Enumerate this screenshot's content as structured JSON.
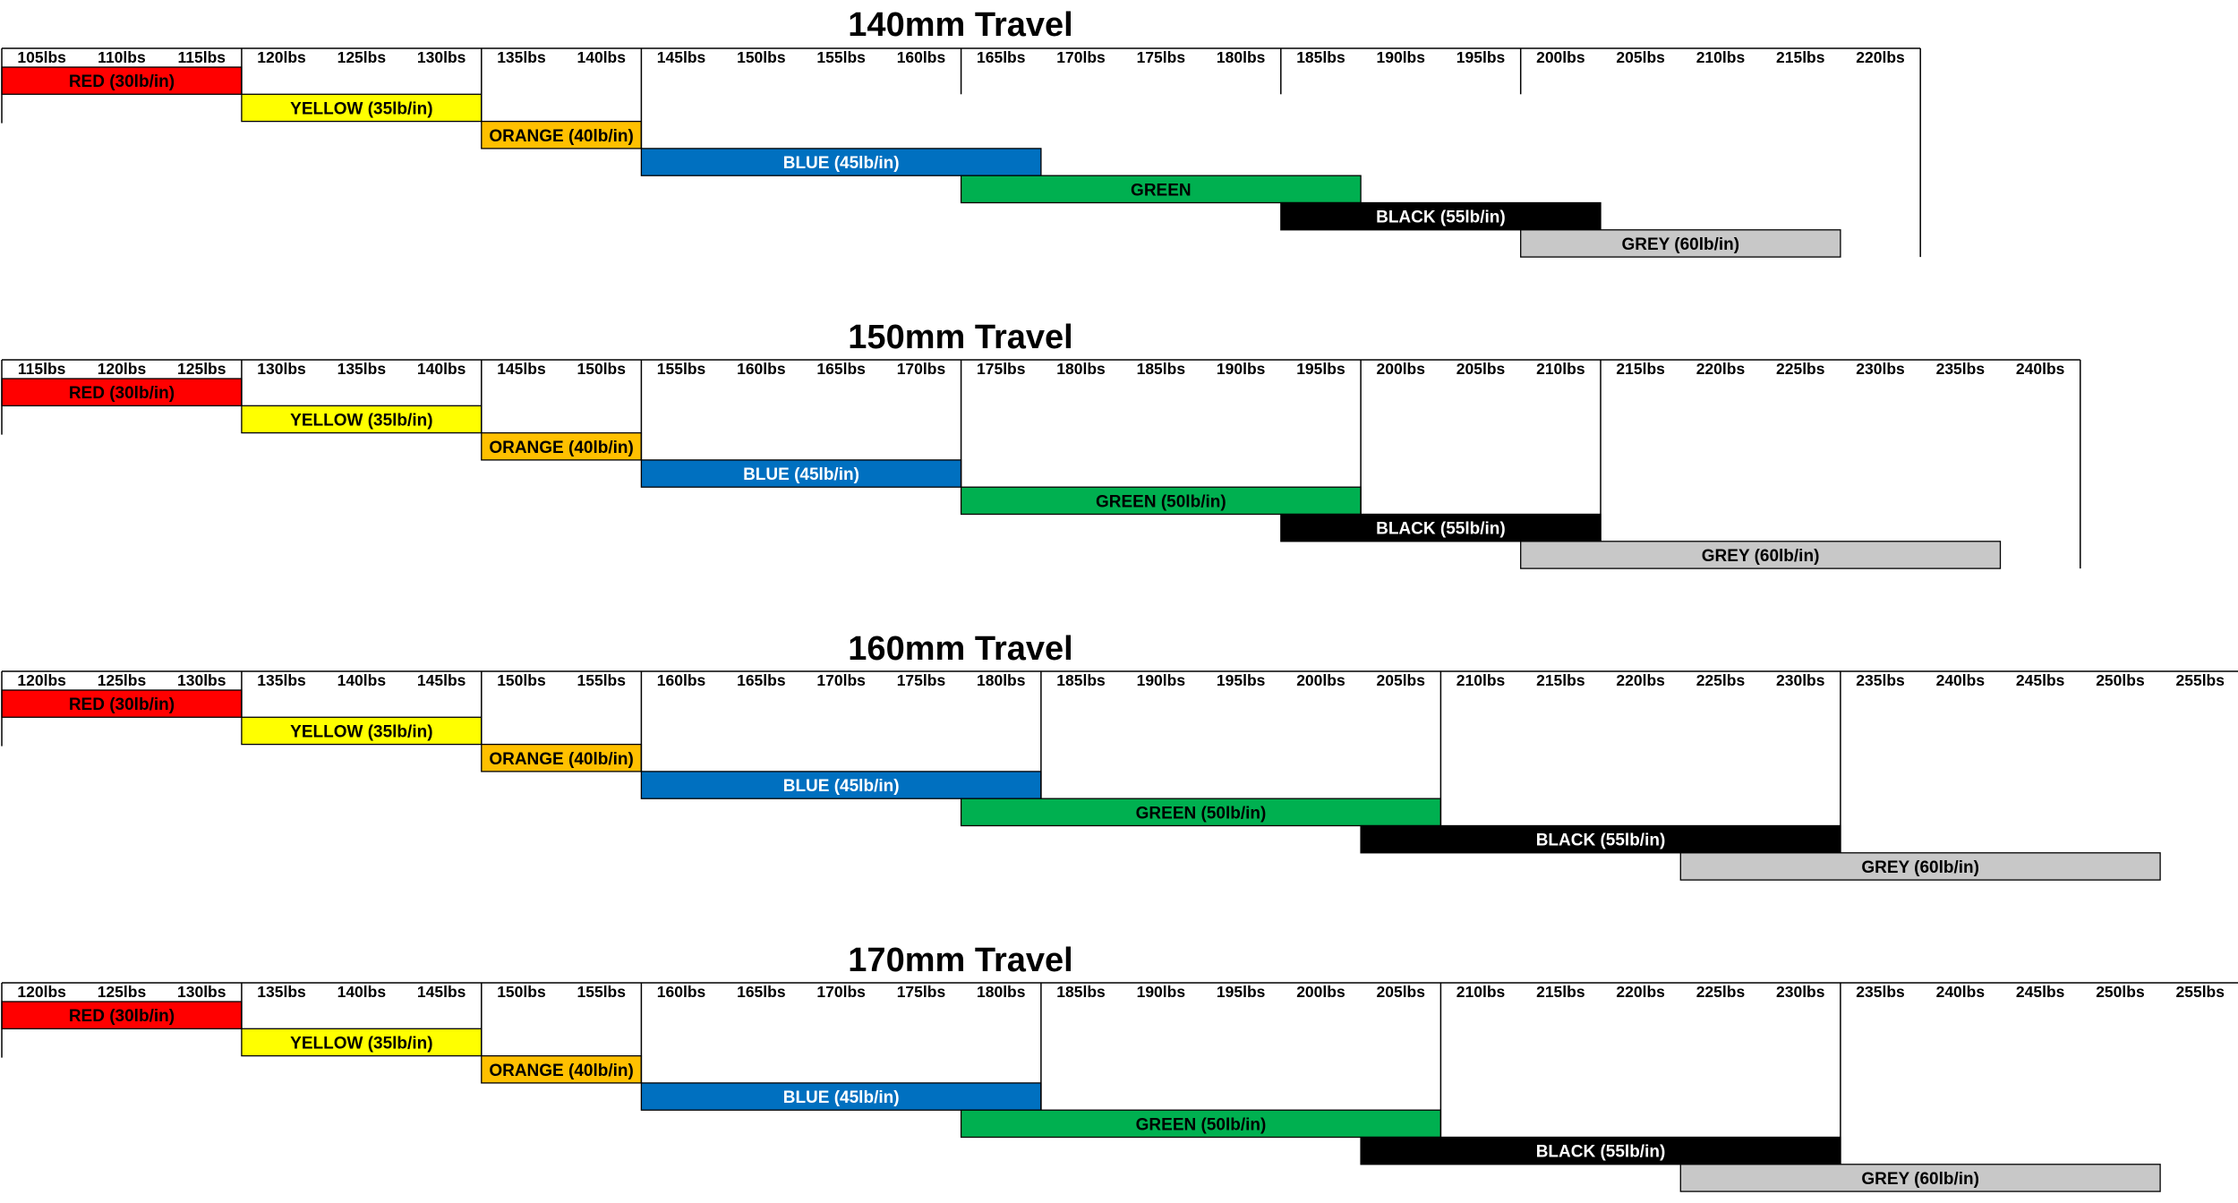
{
  "chart_data": [
    {
      "type": "bar",
      "title": "140mm Travel",
      "categories": [
        "105lbs",
        "110lbs",
        "115lbs",
        "120lbs",
        "125lbs",
        "130lbs",
        "135lbs",
        "140lbs",
        "145lbs",
        "150lbs",
        "155lbs",
        "160lbs",
        "165lbs",
        "170lbs",
        "175lbs",
        "180lbs",
        "185lbs",
        "190lbs",
        "195lbs",
        "200lbs",
        "205lbs",
        "210lbs",
        "215lbs",
        "220lbs"
      ],
      "group_boundaries": [
        "120lbs",
        "135lbs",
        "145lbs",
        "165lbs",
        "185lbs",
        "200lbs"
      ],
      "series": [
        {
          "label": "RED (30lb/in)",
          "start": "105lbs",
          "end": "120lbs",
          "color": "#ff0000",
          "text_color": "#000000"
        },
        {
          "label": "YELLOW (35lb/in)",
          "start": "120lbs",
          "end": "135lbs",
          "color": "#ffff00",
          "text_color": "#000000"
        },
        {
          "label": "ORANGE (40lb/in)",
          "start": "135lbs",
          "end": "145lbs",
          "color": "#ffc000",
          "text_color": "#000000"
        },
        {
          "label": "BLUE (45lb/in)",
          "start": "145lbs",
          "end": "170lbs",
          "color": "#0070c0",
          "text_color": "#ffffff"
        },
        {
          "label": "GREEN",
          "start": "165lbs",
          "end": "190lbs",
          "color": "#00b050",
          "text_color": "#000000"
        },
        {
          "label": "BLACK (55lb/in)",
          "start": "185lbs",
          "end": "205lbs",
          "color": "#000000",
          "text_color": "#ffffff"
        },
        {
          "label": "GREY (60lb/in)",
          "start": "200lbs",
          "end": "220lbs",
          "color": "#c8c8c8",
          "text_color": "#000000"
        }
      ]
    },
    {
      "type": "bar",
      "title": "150mm Travel",
      "categories": [
        "115lbs",
        "120lbs",
        "125lbs",
        "130lbs",
        "135lbs",
        "140lbs",
        "145lbs",
        "150lbs",
        "155lbs",
        "160lbs",
        "165lbs",
        "170lbs",
        "175lbs",
        "180lbs",
        "185lbs",
        "190lbs",
        "195lbs",
        "200lbs",
        "205lbs",
        "210lbs",
        "215lbs",
        "220lbs",
        "225lbs",
        "230lbs",
        "235lbs",
        "240lbs"
      ],
      "group_boundaries": [
        "130lbs",
        "145lbs",
        "155lbs",
        "175lbs",
        "200lbs",
        "215lbs"
      ],
      "series": [
        {
          "label": "RED (30lb/in)",
          "start": "115lbs",
          "end": "130lbs",
          "color": "#ff0000",
          "text_color": "#000000"
        },
        {
          "label": "YELLOW (35lb/in)",
          "start": "130lbs",
          "end": "145lbs",
          "color": "#ffff00",
          "text_color": "#000000"
        },
        {
          "label": "ORANGE (40lb/in)",
          "start": "145lbs",
          "end": "155lbs",
          "color": "#ffc000",
          "text_color": "#000000"
        },
        {
          "label": "BLUE (45lb/in)",
          "start": "155lbs",
          "end": "175lbs",
          "color": "#0070c0",
          "text_color": "#ffffff"
        },
        {
          "label": "GREEN (50lb/in)",
          "start": "175lbs",
          "end": "200lbs",
          "color": "#00b050",
          "text_color": "#000000"
        },
        {
          "label": "BLACK (55lb/in)",
          "start": "195lbs",
          "end": "215lbs",
          "color": "#000000",
          "text_color": "#ffffff"
        },
        {
          "label": "GREY (60lb/in)",
          "start": "210lbs",
          "end": "240lbs",
          "color": "#c8c8c8",
          "text_color": "#000000"
        }
      ]
    },
    {
      "type": "bar",
      "title": "160mm Travel",
      "categories": [
        "120lbs",
        "125lbs",
        "130lbs",
        "135lbs",
        "140lbs",
        "145lbs",
        "150lbs",
        "155lbs",
        "160lbs",
        "165lbs",
        "170lbs",
        "175lbs",
        "180lbs",
        "185lbs",
        "190lbs",
        "195lbs",
        "200lbs",
        "205lbs",
        "210lbs",
        "215lbs",
        "220lbs",
        "225lbs",
        "230lbs",
        "235lbs",
        "240lbs",
        "245lbs",
        "250lbs",
        "255lbs"
      ],
      "group_boundaries": [
        "135lbs",
        "150lbs",
        "160lbs",
        "185lbs",
        "210lbs",
        "235lbs"
      ],
      "series": [
        {
          "label": "RED (30lb/in)",
          "start": "120lbs",
          "end": "135lbs",
          "color": "#ff0000",
          "text_color": "#000000"
        },
        {
          "label": "YELLOW (35lb/in)",
          "start": "135lbs",
          "end": "150lbs",
          "color": "#ffff00",
          "text_color": "#000000"
        },
        {
          "label": "ORANGE (40lb/in)",
          "start": "150lbs",
          "end": "160lbs",
          "color": "#ffc000",
          "text_color": "#000000"
        },
        {
          "label": "BLUE (45lb/in)",
          "start": "160lbs",
          "end": "185lbs",
          "color": "#0070c0",
          "text_color": "#ffffff"
        },
        {
          "label": "GREEN (50lb/in)",
          "start": "180lbs",
          "end": "210lbs",
          "color": "#00b050",
          "text_color": "#000000"
        },
        {
          "label": "BLACK (55lb/in)",
          "start": "205lbs",
          "end": "235lbs",
          "color": "#000000",
          "text_color": "#ffffff"
        },
        {
          "label": "GREY (60lb/in)",
          "start": "225lbs",
          "end": "255lbs",
          "color": "#c8c8c8",
          "text_color": "#000000"
        }
      ]
    },
    {
      "type": "bar",
      "title": "170mm Travel",
      "categories": [
        "120lbs",
        "125lbs",
        "130lbs",
        "135lbs",
        "140lbs",
        "145lbs",
        "150lbs",
        "155lbs",
        "160lbs",
        "165lbs",
        "170lbs",
        "175lbs",
        "180lbs",
        "185lbs",
        "190lbs",
        "195lbs",
        "200lbs",
        "205lbs",
        "210lbs",
        "215lbs",
        "220lbs",
        "225lbs",
        "230lbs",
        "235lbs",
        "240lbs",
        "245lbs",
        "250lbs",
        "255lbs"
      ],
      "group_boundaries": [
        "135lbs",
        "150lbs",
        "160lbs",
        "185lbs",
        "210lbs",
        "235lbs"
      ],
      "series": [
        {
          "label": "RED (30lb/in)",
          "start": "120lbs",
          "end": "135lbs",
          "color": "#ff0000",
          "text_color": "#000000"
        },
        {
          "label": "YELLOW (35lb/in)",
          "start": "135lbs",
          "end": "150lbs",
          "color": "#ffff00",
          "text_color": "#000000"
        },
        {
          "label": "ORANGE (40lb/in)",
          "start": "150lbs",
          "end": "160lbs",
          "color": "#ffc000",
          "text_color": "#000000"
        },
        {
          "label": "BLUE (45lb/in)",
          "start": "160lbs",
          "end": "185lbs",
          "color": "#0070c0",
          "text_color": "#ffffff"
        },
        {
          "label": "GREEN (50lb/in)",
          "start": "180lbs",
          "end": "210lbs",
          "color": "#00b050",
          "text_color": "#000000"
        },
        {
          "label": "BLACK (55lb/in)",
          "start": "205lbs",
          "end": "235lbs",
          "color": "#000000",
          "text_color": "#ffffff"
        },
        {
          "label": "GREY (60lb/in)",
          "start": "225lbs",
          "end": "255lbs",
          "color": "#c8c8c8",
          "text_color": "#000000"
        }
      ]
    }
  ]
}
